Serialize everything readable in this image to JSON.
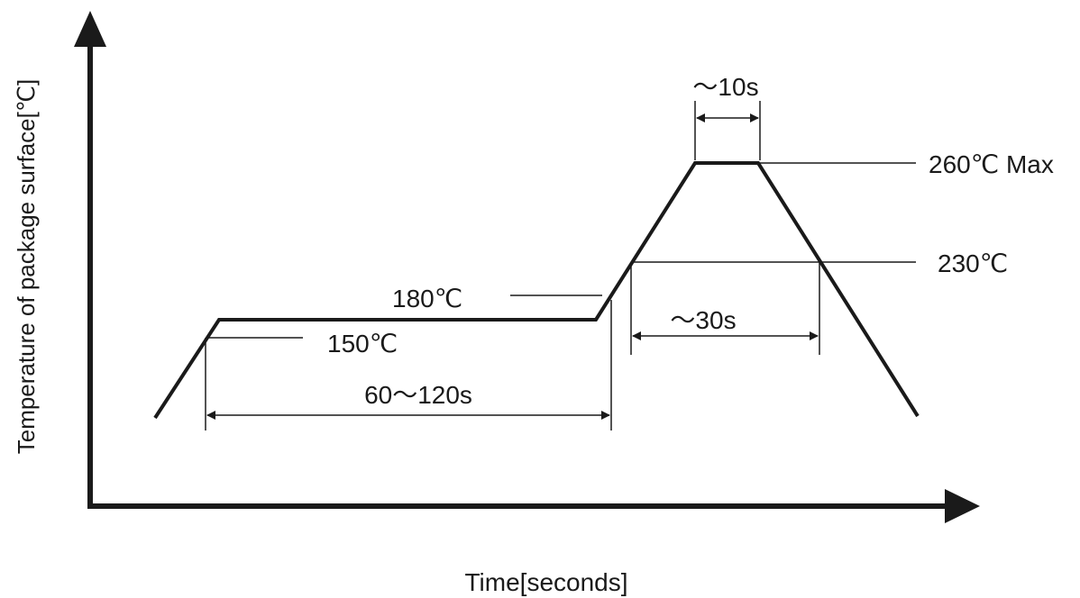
{
  "axes": {
    "y_label": "Temperature  of package surface[℃]",
    "x_label": "Time[seconds]"
  },
  "annotations": {
    "peak_time": "～10s",
    "peak_temp": "260℃ Max",
    "t230": "230℃",
    "t180": "180℃",
    "t150": "150℃",
    "reflow_time": "～30s",
    "preheat_time": "60～120s"
  },
  "colors": {
    "ink": "#1a1a1a",
    "background": "#ffffff"
  }
}
